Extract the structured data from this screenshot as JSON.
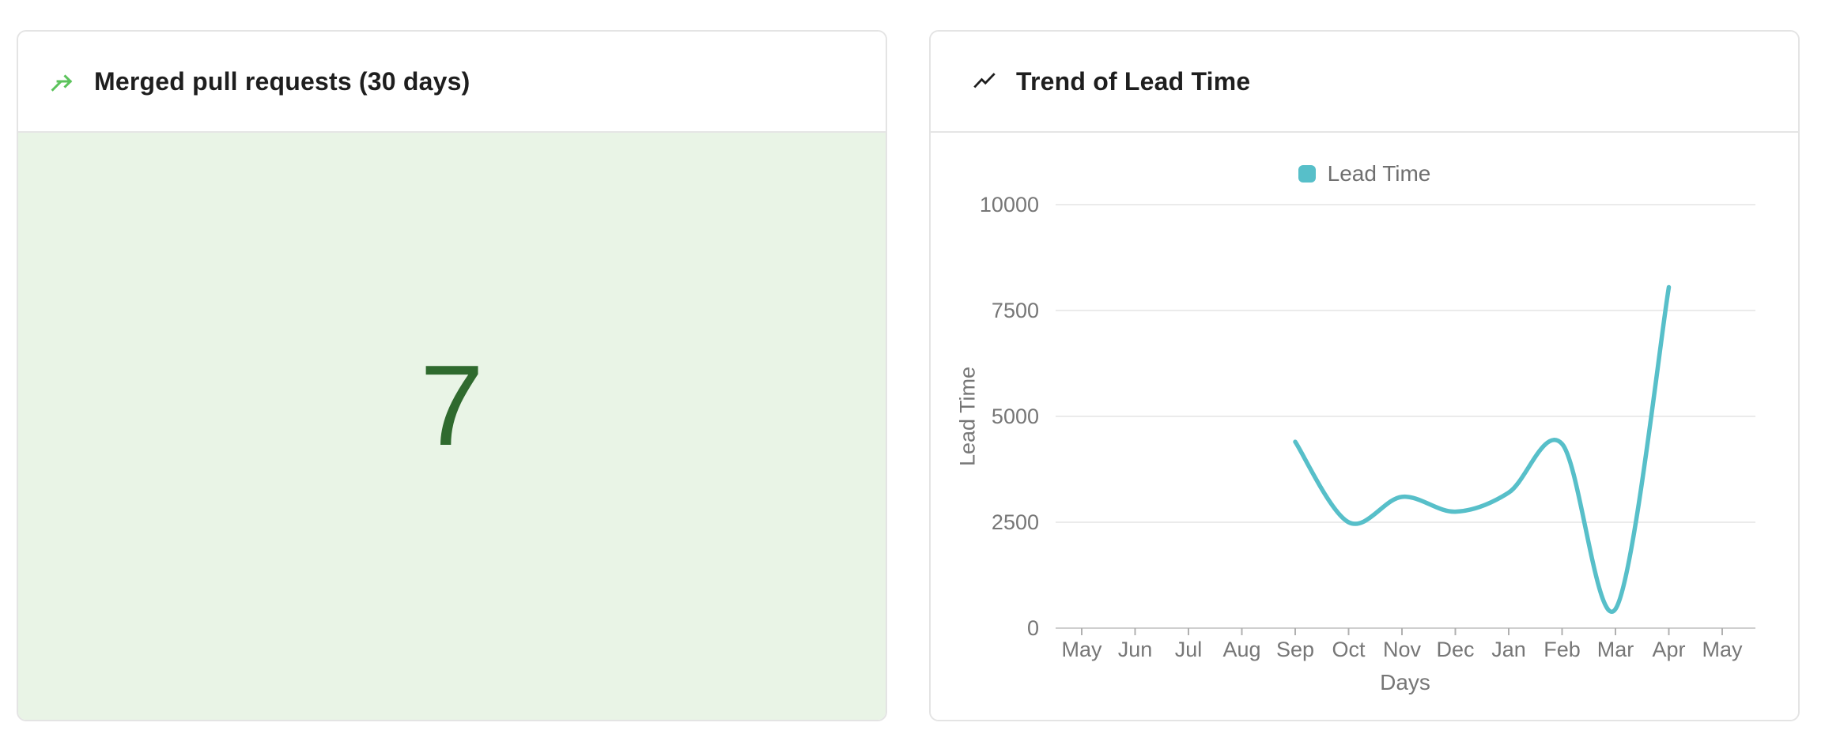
{
  "cards": {
    "merged_pr": {
      "title": "Merged pull requests (30 days)",
      "value": "7",
      "icon": "git-merge-icon",
      "icon_color": "#5cc35c",
      "value_color": "#2f6a2e",
      "body_bg": "#e9f4e6"
    },
    "lead_time": {
      "title": "Trend of Lead Time",
      "icon": "trend-up-icon",
      "icon_color": "#1e1e1e"
    }
  },
  "chart_data": {
    "type": "line",
    "title": "Trend of Lead Time",
    "categories": [
      "May",
      "Jun",
      "Jul",
      "Aug",
      "Sep",
      "Oct",
      "Nov",
      "Dec",
      "Jan",
      "Feb",
      "Mar",
      "Apr",
      "May"
    ],
    "series": [
      {
        "name": "Lead Time",
        "color": "#57bfc9",
        "values": [
          null,
          null,
          null,
          null,
          4400,
          2500,
          3100,
          2750,
          3200,
          4350,
          450,
          8050,
          null
        ]
      }
    ],
    "xlabel": "Days",
    "ylabel": "Lead Time",
    "ylim": [
      0,
      10000
    ],
    "yticks": [
      0,
      2500,
      5000,
      7500,
      10000
    ],
    "grid": true,
    "smooth": true,
    "legend_position": "top",
    "axis_text_color": "#767676",
    "gridline_color": "#ebebeb",
    "axisline_color": "#cfcfcf",
    "tick_color": "#b0b0b0"
  }
}
